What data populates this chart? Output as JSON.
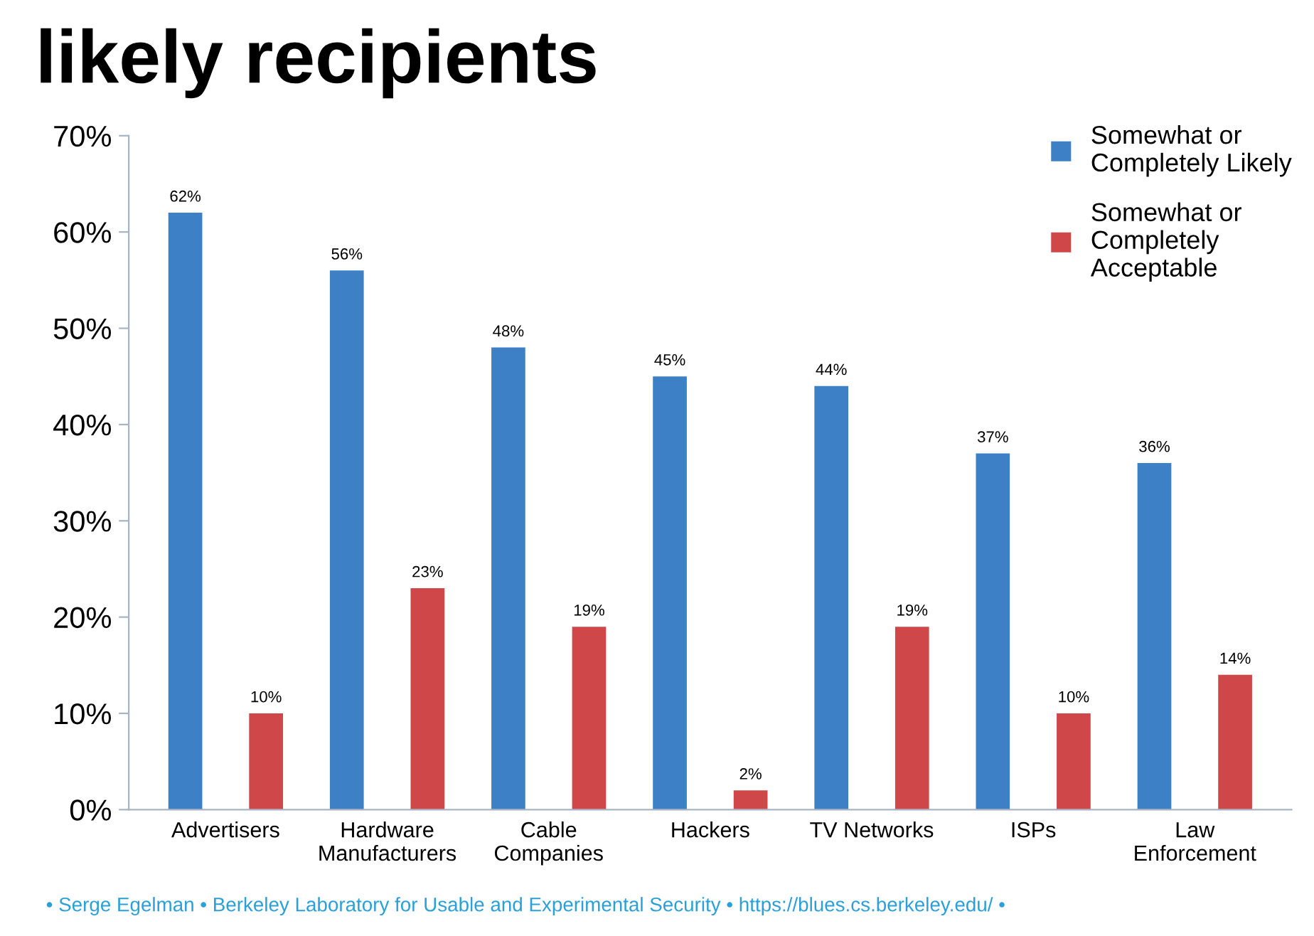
{
  "chart_data": {
    "type": "bar",
    "title": "likely recipients",
    "categories": [
      "Advertisers",
      "Hardware\nManufacturers",
      "Cable\nCompanies",
      "Hackers",
      "TV Networks",
      "ISPs",
      "Law\nEnforcement"
    ],
    "series": [
      {
        "name": "Somewhat or\nCompletely Likely",
        "color": "#3d80c6",
        "values": [
          62,
          56,
          48,
          45,
          44,
          37,
          36
        ],
        "value_labels": [
          "62%",
          "56%",
          "48%",
          "45%",
          "44%",
          "37%",
          "36%"
        ]
      },
      {
        "name": "Somewhat or\nCompletely\nAcceptable",
        "color": "#d0474a",
        "values": [
          10,
          23,
          19,
          2,
          19,
          10,
          14
        ],
        "value_labels": [
          "10%",
          "23%",
          "19%",
          "2%",
          "19%",
          "10%",
          "14%"
        ]
      }
    ],
    "ylim": [
      0,
      70
    ],
    "yticks": [
      {
        "value": 0,
        "label": "0%"
      },
      {
        "value": 10,
        "label": "10%"
      },
      {
        "value": 20,
        "label": "20%"
      },
      {
        "value": 30,
        "label": "30%"
      },
      {
        "value": 40,
        "label": "40%"
      },
      {
        "value": 50,
        "label": "50%"
      },
      {
        "value": 60,
        "label": "60%"
      },
      {
        "value": 70,
        "label": "70%"
      }
    ],
    "grid": false,
    "legend": "top right",
    "annotations": [
      "• Serge Egelman • Berkeley Laboratory for Usable and Experimental Security • https://blues.cs.berkeley.edu/ •"
    ]
  }
}
